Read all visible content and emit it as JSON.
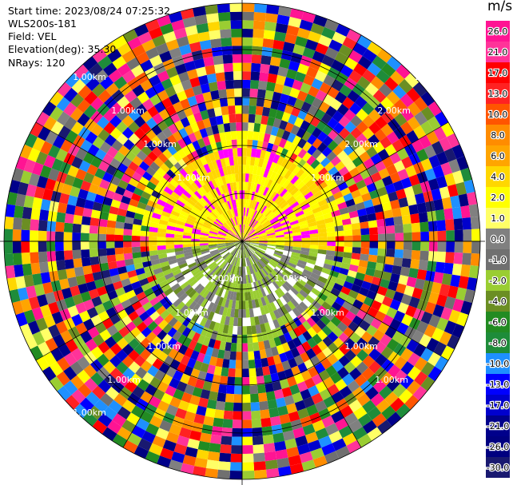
{
  "header": {
    "start_time": "Start time: 2023/08/24 07:25:32",
    "instrument": "WLS200s-181",
    "field": "Field: VEL",
    "elevation": "Elevation(deg): 35.30",
    "nrays": "NRays: 120"
  },
  "colorbar": {
    "unit": "m/s",
    "ticks": [
      "26.0",
      "21.0",
      "17.0",
      "13.0",
      "10.0",
      "8.0",
      "6.0",
      "4.0",
      "2.0",
      "1.0",
      "0.0",
      "-1.0",
      "-2.0",
      "-4.0",
      "-6.0",
      "-8.0",
      "-10.0",
      "-13.0",
      "-17.0",
      "-21.0",
      "-26.0",
      "-30.0"
    ],
    "colors": [
      "#ff1493",
      "#ff3399",
      "#ff0000",
      "#ff2222",
      "#ff5500",
      "#ff8c00",
      "#ffa500",
      "#ffd700",
      "#ffff00",
      "#ffff66",
      "#808080",
      "#707070",
      "#9acd32",
      "#6b8e23",
      "#228b22",
      "#1e8c3a",
      "#1e90ff",
      "#0000ff",
      "#0000cd",
      "#00008b",
      "#000080",
      "#191970"
    ]
  },
  "chart_data": {
    "type": "ppi",
    "field": "VEL",
    "units": "m/s",
    "nrays": 120,
    "elevation_deg": 35.3,
    "range_rings": [
      "1.00km",
      "1.00km",
      "1.00km",
      "1.00km",
      "1.00km",
      "1.00km",
      "1.00km",
      "1.00km",
      "1.00km",
      "1.00km",
      "1.00km",
      "1.00km",
      "1.00km",
      "1.00km",
      "2.00km",
      "2.00km",
      "2.00km"
    ],
    "vmin": -30.0,
    "vmax": 26.0
  }
}
